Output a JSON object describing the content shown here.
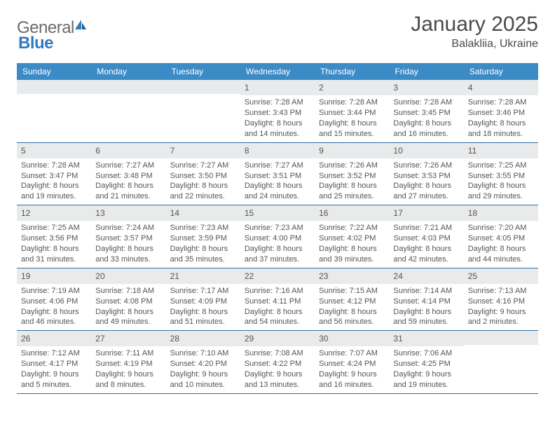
{
  "logo": {
    "general": "General",
    "blue": "Blue"
  },
  "title": "January 2025",
  "location": "Balakliia, Ukraine",
  "day_headers": [
    "Sunday",
    "Monday",
    "Tuesday",
    "Wednesday",
    "Thursday",
    "Friday",
    "Saturday"
  ],
  "colors": {
    "header_bg": "#3b8bc7",
    "header_text": "#ffffff",
    "daynum_bg": "#e9eaeb",
    "week_border": "#2f6fa3",
    "text": "#4a4a4a",
    "logo_gray": "#6b6b6b",
    "logo_blue": "#2f7bbf"
  },
  "weeks": [
    [
      {
        "n": "",
        "lines": []
      },
      {
        "n": "",
        "lines": []
      },
      {
        "n": "",
        "lines": []
      },
      {
        "n": "1",
        "lines": [
          "Sunrise: 7:28 AM",
          "Sunset: 3:43 PM",
          "Daylight: 8 hours",
          "and 14 minutes."
        ]
      },
      {
        "n": "2",
        "lines": [
          "Sunrise: 7:28 AM",
          "Sunset: 3:44 PM",
          "Daylight: 8 hours",
          "and 15 minutes."
        ]
      },
      {
        "n": "3",
        "lines": [
          "Sunrise: 7:28 AM",
          "Sunset: 3:45 PM",
          "Daylight: 8 hours",
          "and 16 minutes."
        ]
      },
      {
        "n": "4",
        "lines": [
          "Sunrise: 7:28 AM",
          "Sunset: 3:46 PM",
          "Daylight: 8 hours",
          "and 18 minutes."
        ]
      }
    ],
    [
      {
        "n": "5",
        "lines": [
          "Sunrise: 7:28 AM",
          "Sunset: 3:47 PM",
          "Daylight: 8 hours",
          "and 19 minutes."
        ]
      },
      {
        "n": "6",
        "lines": [
          "Sunrise: 7:27 AM",
          "Sunset: 3:48 PM",
          "Daylight: 8 hours",
          "and 21 minutes."
        ]
      },
      {
        "n": "7",
        "lines": [
          "Sunrise: 7:27 AM",
          "Sunset: 3:50 PM",
          "Daylight: 8 hours",
          "and 22 minutes."
        ]
      },
      {
        "n": "8",
        "lines": [
          "Sunrise: 7:27 AM",
          "Sunset: 3:51 PM",
          "Daylight: 8 hours",
          "and 24 minutes."
        ]
      },
      {
        "n": "9",
        "lines": [
          "Sunrise: 7:26 AM",
          "Sunset: 3:52 PM",
          "Daylight: 8 hours",
          "and 25 minutes."
        ]
      },
      {
        "n": "10",
        "lines": [
          "Sunrise: 7:26 AM",
          "Sunset: 3:53 PM",
          "Daylight: 8 hours",
          "and 27 minutes."
        ]
      },
      {
        "n": "11",
        "lines": [
          "Sunrise: 7:25 AM",
          "Sunset: 3:55 PM",
          "Daylight: 8 hours",
          "and 29 minutes."
        ]
      }
    ],
    [
      {
        "n": "12",
        "lines": [
          "Sunrise: 7:25 AM",
          "Sunset: 3:56 PM",
          "Daylight: 8 hours",
          "and 31 minutes."
        ]
      },
      {
        "n": "13",
        "lines": [
          "Sunrise: 7:24 AM",
          "Sunset: 3:57 PM",
          "Daylight: 8 hours",
          "and 33 minutes."
        ]
      },
      {
        "n": "14",
        "lines": [
          "Sunrise: 7:23 AM",
          "Sunset: 3:59 PM",
          "Daylight: 8 hours",
          "and 35 minutes."
        ]
      },
      {
        "n": "15",
        "lines": [
          "Sunrise: 7:23 AM",
          "Sunset: 4:00 PM",
          "Daylight: 8 hours",
          "and 37 minutes."
        ]
      },
      {
        "n": "16",
        "lines": [
          "Sunrise: 7:22 AM",
          "Sunset: 4:02 PM",
          "Daylight: 8 hours",
          "and 39 minutes."
        ]
      },
      {
        "n": "17",
        "lines": [
          "Sunrise: 7:21 AM",
          "Sunset: 4:03 PM",
          "Daylight: 8 hours",
          "and 42 minutes."
        ]
      },
      {
        "n": "18",
        "lines": [
          "Sunrise: 7:20 AM",
          "Sunset: 4:05 PM",
          "Daylight: 8 hours",
          "and 44 minutes."
        ]
      }
    ],
    [
      {
        "n": "19",
        "lines": [
          "Sunrise: 7:19 AM",
          "Sunset: 4:06 PM",
          "Daylight: 8 hours",
          "and 46 minutes."
        ]
      },
      {
        "n": "20",
        "lines": [
          "Sunrise: 7:18 AM",
          "Sunset: 4:08 PM",
          "Daylight: 8 hours",
          "and 49 minutes."
        ]
      },
      {
        "n": "21",
        "lines": [
          "Sunrise: 7:17 AM",
          "Sunset: 4:09 PM",
          "Daylight: 8 hours",
          "and 51 minutes."
        ]
      },
      {
        "n": "22",
        "lines": [
          "Sunrise: 7:16 AM",
          "Sunset: 4:11 PM",
          "Daylight: 8 hours",
          "and 54 minutes."
        ]
      },
      {
        "n": "23",
        "lines": [
          "Sunrise: 7:15 AM",
          "Sunset: 4:12 PM",
          "Daylight: 8 hours",
          "and 56 minutes."
        ]
      },
      {
        "n": "24",
        "lines": [
          "Sunrise: 7:14 AM",
          "Sunset: 4:14 PM",
          "Daylight: 8 hours",
          "and 59 minutes."
        ]
      },
      {
        "n": "25",
        "lines": [
          "Sunrise: 7:13 AM",
          "Sunset: 4:16 PM",
          "Daylight: 9 hours",
          "and 2 minutes."
        ]
      }
    ],
    [
      {
        "n": "26",
        "lines": [
          "Sunrise: 7:12 AM",
          "Sunset: 4:17 PM",
          "Daylight: 9 hours",
          "and 5 minutes."
        ]
      },
      {
        "n": "27",
        "lines": [
          "Sunrise: 7:11 AM",
          "Sunset: 4:19 PM",
          "Daylight: 9 hours",
          "and 8 minutes."
        ]
      },
      {
        "n": "28",
        "lines": [
          "Sunrise: 7:10 AM",
          "Sunset: 4:20 PM",
          "Daylight: 9 hours",
          "and 10 minutes."
        ]
      },
      {
        "n": "29",
        "lines": [
          "Sunrise: 7:08 AM",
          "Sunset: 4:22 PM",
          "Daylight: 9 hours",
          "and 13 minutes."
        ]
      },
      {
        "n": "30",
        "lines": [
          "Sunrise: 7:07 AM",
          "Sunset: 4:24 PM",
          "Daylight: 9 hours",
          "and 16 minutes."
        ]
      },
      {
        "n": "31",
        "lines": [
          "Sunrise: 7:06 AM",
          "Sunset: 4:25 PM",
          "Daylight: 9 hours",
          "and 19 minutes."
        ]
      },
      {
        "n": "",
        "lines": []
      }
    ]
  ]
}
